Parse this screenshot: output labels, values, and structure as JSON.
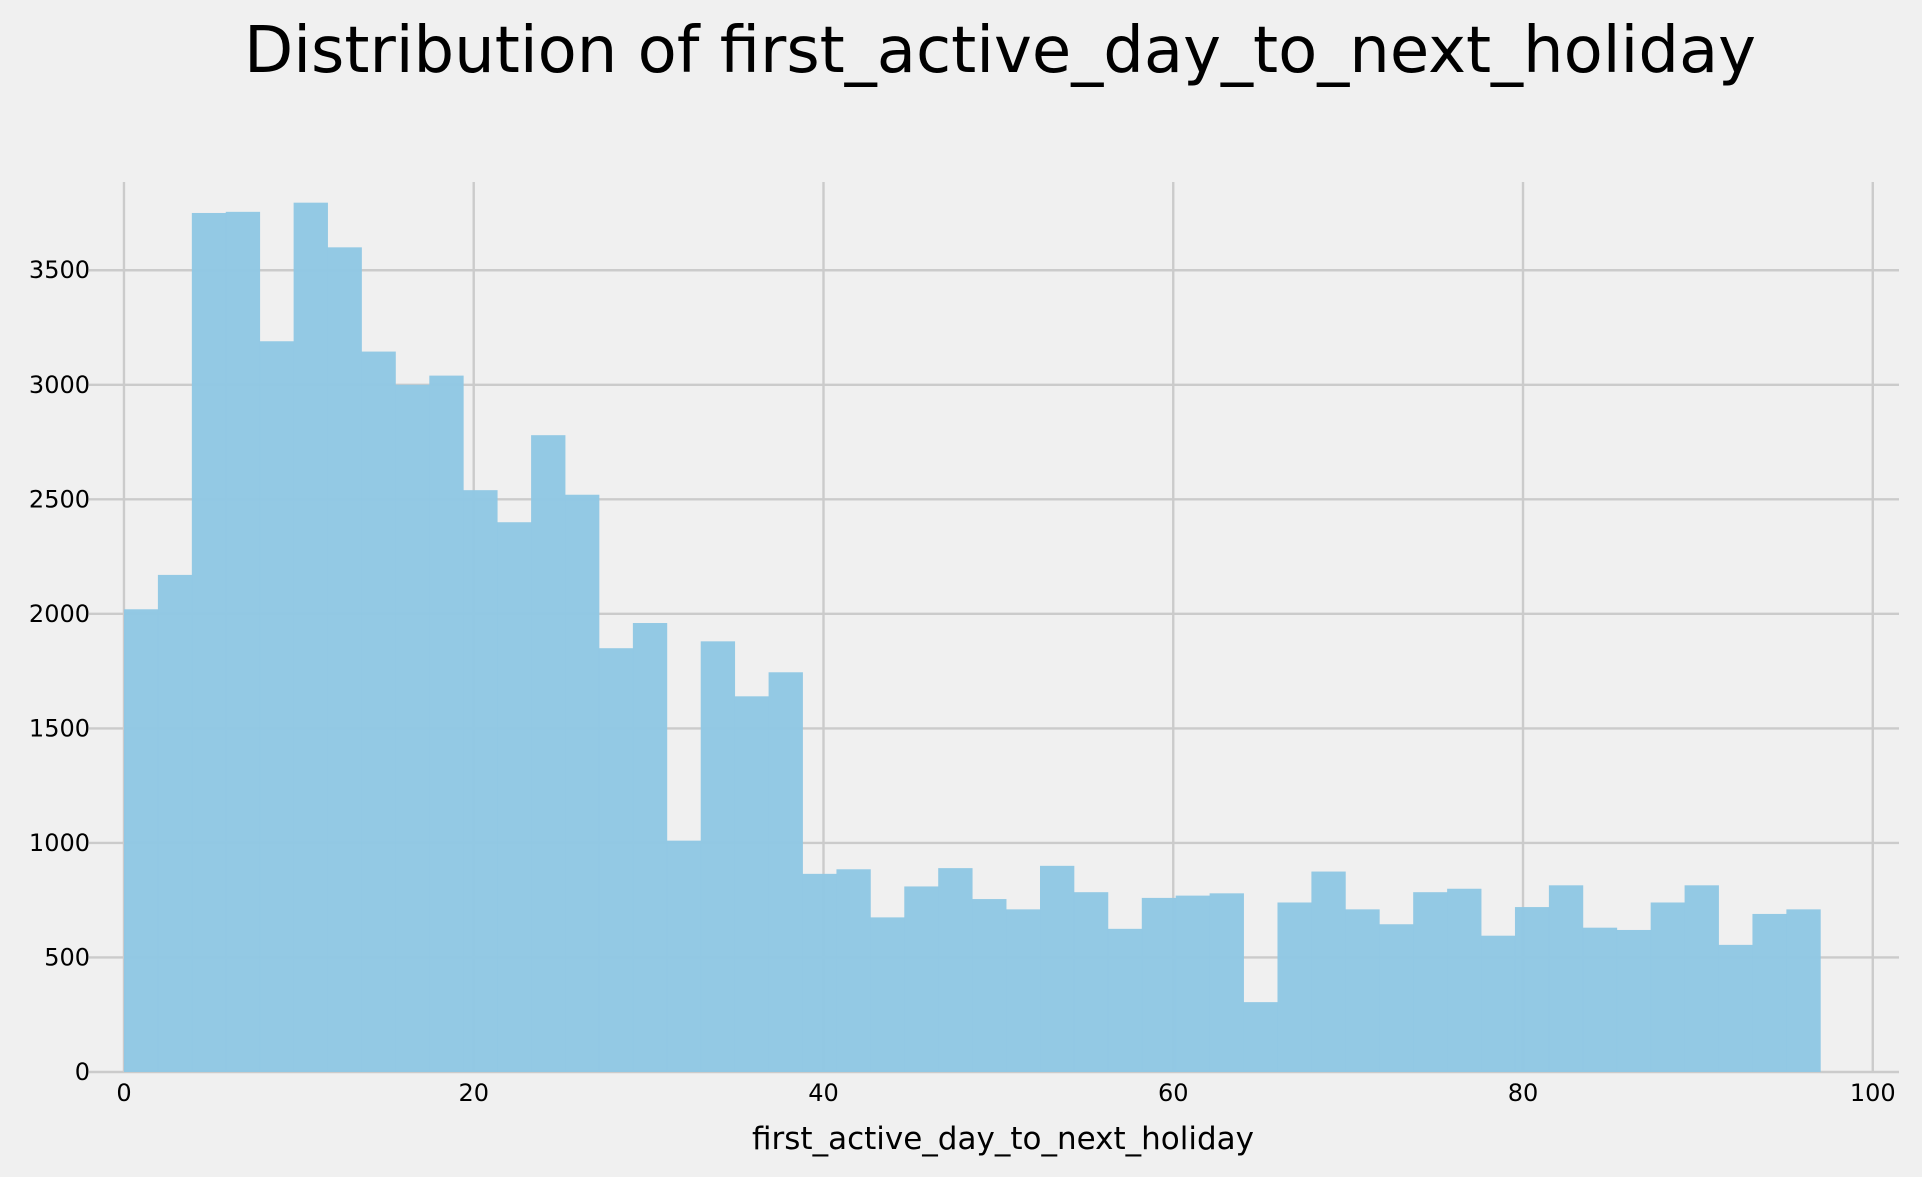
{
  "chart_data": {
    "type": "bar",
    "subtype": "histogram",
    "title": "Distribution of first_active_day_to_next_holiday",
    "xlabel": "first_active_day_to_next_holiday",
    "ylabel": "",
    "xlim": [
      -2,
      101.5
    ],
    "ylim": [
      0,
      3990
    ],
    "x_ticks": [
      0,
      20,
      40,
      60,
      80,
      100
    ],
    "y_ticks": [
      0,
      500,
      1000,
      1500,
      2000,
      2500,
      3000,
      3500
    ],
    "grid": true,
    "bar_color": "#8fc7e3",
    "bin_edges": [
      0,
      1.94,
      3.88,
      5.82,
      7.76,
      9.7,
      11.64,
      13.58,
      15.52,
      17.46,
      19.4,
      21.34,
      23.28,
      25.22,
      27.16,
      29.1,
      31.04,
      32.98,
      34.92,
      36.86,
      38.8,
      40.74,
      42.68,
      44.62,
      46.56,
      48.5,
      50.44,
      52.38,
      54.32,
      56.26,
      58.2,
      60.14,
      62.08,
      64.02,
      65.96,
      67.9,
      69.84,
      71.78,
      73.72,
      75.66,
      77.6,
      79.54,
      81.48,
      83.42,
      85.36,
      87.3,
      89.24,
      91.18,
      93.12,
      95.06,
      97.0
    ],
    "values": [
      2020,
      2170,
      3750,
      3755,
      3190,
      3795,
      3600,
      3145,
      3000,
      3040,
      2540,
      2400,
      2780,
      2520,
      1850,
      1960,
      1010,
      1880,
      1640,
      1745,
      865,
      885,
      675,
      810,
      890,
      755,
      710,
      900,
      785,
      625,
      760,
      770,
      780,
      305,
      740,
      875,
      710,
      645,
      785,
      800,
      595,
      720,
      815,
      630,
      620,
      740,
      815,
      555,
      690,
      710
    ]
  }
}
